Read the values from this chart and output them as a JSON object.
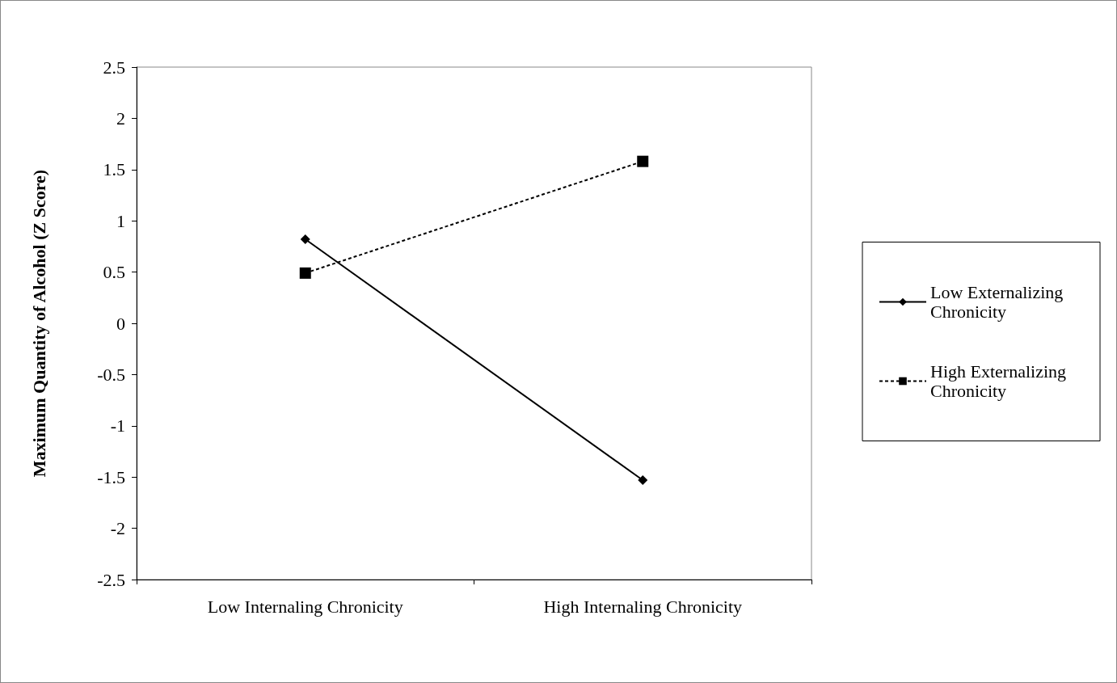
{
  "chart_data": {
    "type": "line",
    "ylabel": "Maximum Quantity of Alcohol (Z Score)",
    "categories": [
      "Low Internaling Chronicity",
      "High Internaling Chronicity"
    ],
    "series": [
      {
        "name": "Low Externalizing Chronicity",
        "color": "#000000",
        "values": [
          0.82,
          -1.53
        ],
        "marker": "diamond",
        "line_style": "solid"
      },
      {
        "name": "High Externalizing Chronicity",
        "color": "#000000",
        "values": [
          0.49,
          1.58
        ],
        "marker": "square",
        "line_style": "dashed"
      }
    ],
    "ylim": [
      -2.5,
      2.5
    ],
    "yticks": [
      -2.5,
      -2,
      -1.5,
      -1,
      -0.5,
      0,
      0.5,
      1,
      1.5,
      2,
      2.5
    ],
    "grid": false,
    "legend": "right"
  }
}
